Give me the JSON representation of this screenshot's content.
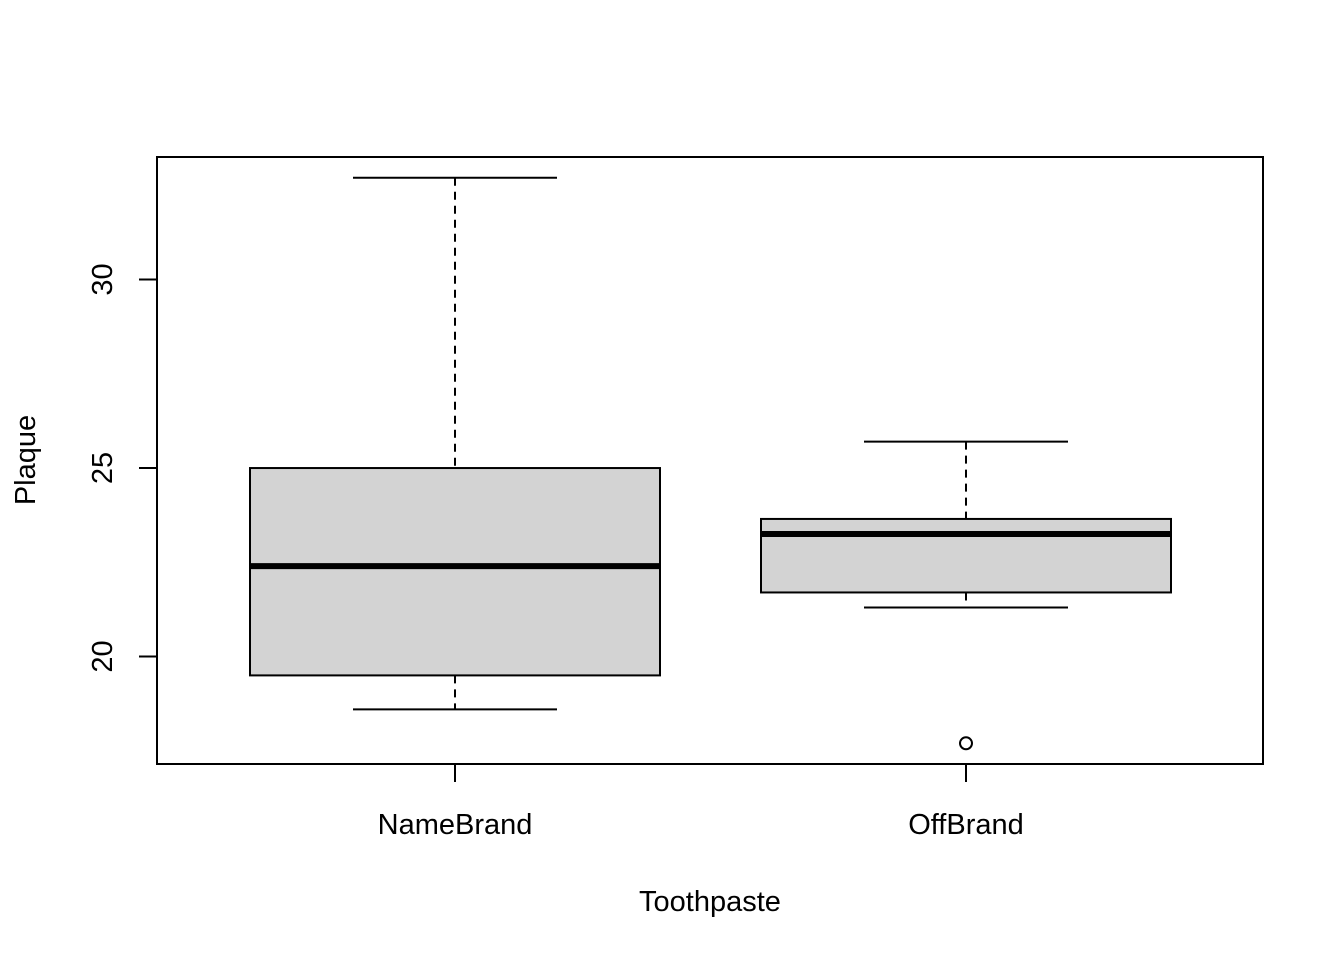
{
  "chart_data": {
    "type": "boxplot",
    "title": "",
    "xlabel": "Toothpaste",
    "ylabel": "Plaque",
    "categories": [
      "NameBrand",
      "OffBrand"
    ],
    "boxes": [
      {
        "category": "NameBrand",
        "whisker_low": 18.6,
        "q1": 19.5,
        "median": 22.4,
        "q3": 25.0,
        "whisker_high": 32.7,
        "outliers": []
      },
      {
        "category": "OffBrand",
        "whisker_low": 21.3,
        "q1": 21.7,
        "median": 23.25,
        "q3": 23.65,
        "whisker_high": 25.7,
        "outliers": [
          17.7
        ]
      }
    ],
    "y_ticks": [
      20,
      25,
      30
    ],
    "ylim": [
      17.15,
      33.25
    ],
    "box_fill": "#d3d3d3",
    "grid": false,
    "legend": "none"
  }
}
